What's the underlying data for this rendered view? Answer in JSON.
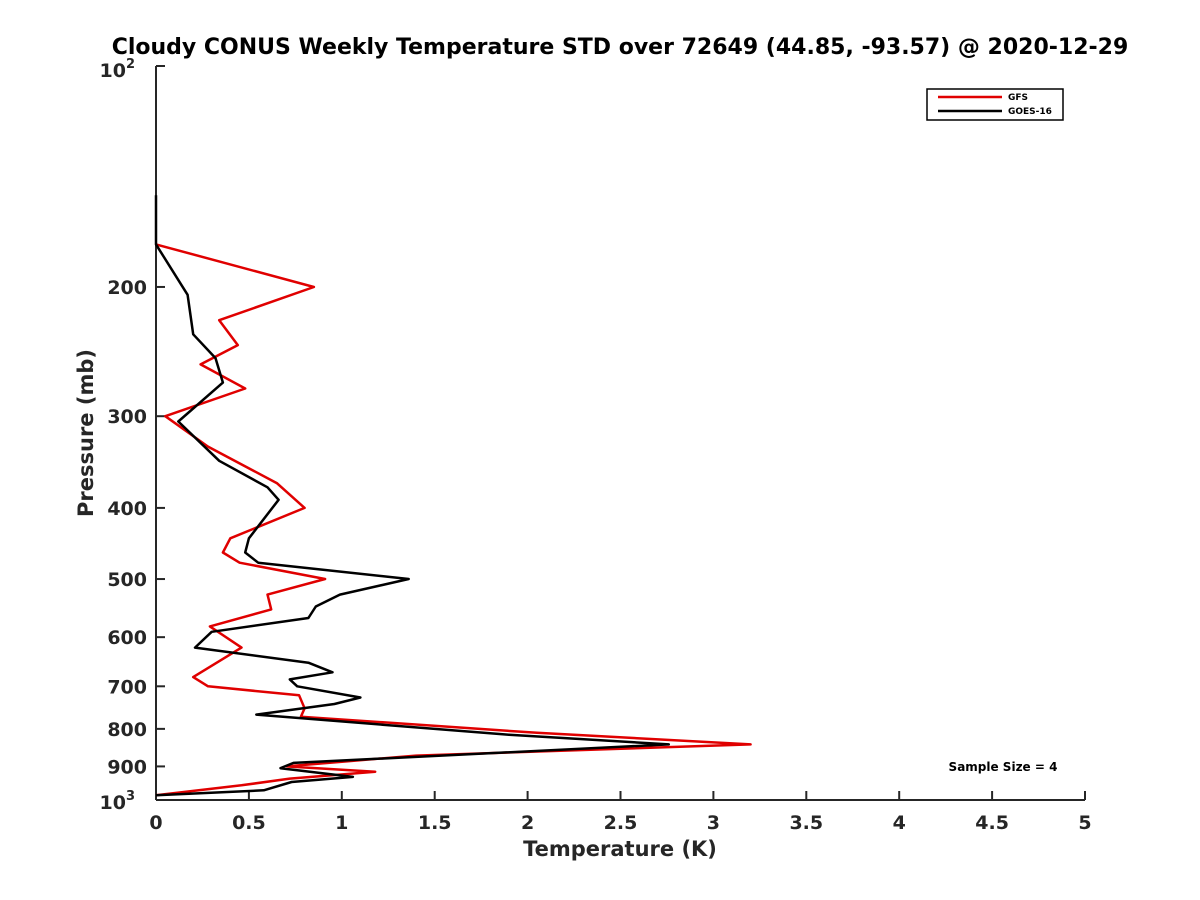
{
  "chart_data": {
    "type": "line",
    "title": "Cloudy CONUS Weekly Temperature STD over 72649 (44.85, -93.57) @ 2020-12-29",
    "xlabel": "Temperature (K)",
    "ylabel": "Pressure (mb)",
    "xlim": [
      0,
      5
    ],
    "ylim": [
      100,
      1000
    ],
    "y_scale": "log",
    "y_reversed": true,
    "x_ticks": [
      "0",
      "0.5",
      "1",
      "1.5",
      "2",
      "2.5",
      "3",
      "3.5",
      "4",
      "4.5",
      "5"
    ],
    "x_tick_values": [
      0,
      0.5,
      1,
      1.5,
      2,
      2.5,
      3,
      3.5,
      4,
      4.5,
      5
    ],
    "y_tick_values": [
      200,
      300,
      400,
      500,
      600,
      700,
      800,
      900
    ],
    "y_ticks": [
      "200",
      "300",
      "400",
      "500",
      "600",
      "700",
      "800",
      "900"
    ],
    "y_end_labels": {
      "top_base": "10",
      "top_exp": "2",
      "bottom_base": "10",
      "bottom_exp": "3"
    },
    "legend_position": "top-right",
    "annotation": "Sample Size = 4",
    "grid": false,
    "series": [
      {
        "name": "GFS",
        "color": "#e00000",
        "points": [
          [
            0.0,
            175
          ],
          [
            0.85,
            200
          ],
          [
            0.34,
            222
          ],
          [
            0.44,
            240
          ],
          [
            0.24,
            255
          ],
          [
            0.48,
            275
          ],
          [
            0.05,
            300
          ],
          [
            0.28,
            330
          ],
          [
            0.65,
            370
          ],
          [
            0.8,
            400
          ],
          [
            0.4,
            440
          ],
          [
            0.36,
            460
          ],
          [
            0.45,
            475
          ],
          [
            0.91,
            500
          ],
          [
            0.6,
            525
          ],
          [
            0.62,
            550
          ],
          [
            0.29,
            580
          ],
          [
            0.46,
            620
          ],
          [
            0.2,
            680
          ],
          [
            0.28,
            700
          ],
          [
            0.77,
            720
          ],
          [
            0.8,
            750
          ],
          [
            0.78,
            770
          ],
          [
            2.05,
            810
          ],
          [
            3.2,
            840
          ],
          [
            1.4,
            870
          ],
          [
            0.7,
            900
          ],
          [
            1.18,
            915
          ],
          [
            0.72,
            935
          ],
          [
            0.46,
            955
          ],
          [
            0.0,
            985
          ]
        ]
      },
      {
        "name": "GOES-16",
        "color": "#000000",
        "points": [
          [
            0.0,
            150
          ],
          [
            0.0,
            175
          ],
          [
            0.17,
            205
          ],
          [
            0.2,
            232
          ],
          [
            0.32,
            250
          ],
          [
            0.36,
            270
          ],
          [
            0.12,
            305
          ],
          [
            0.34,
            345
          ],
          [
            0.6,
            375
          ],
          [
            0.66,
            390
          ],
          [
            0.5,
            440
          ],
          [
            0.48,
            460
          ],
          [
            0.55,
            475
          ],
          [
            1.36,
            500
          ],
          [
            0.99,
            525
          ],
          [
            0.86,
            545
          ],
          [
            0.82,
            565
          ],
          [
            0.3,
            590
          ],
          [
            0.21,
            620
          ],
          [
            0.82,
            650
          ],
          [
            0.95,
            670
          ],
          [
            0.72,
            685
          ],
          [
            0.76,
            700
          ],
          [
            1.1,
            725
          ],
          [
            0.96,
            740
          ],
          [
            0.54,
            765
          ],
          [
            1.9,
            815
          ],
          [
            2.76,
            840
          ],
          [
            0.74,
            890
          ],
          [
            0.67,
            905
          ],
          [
            1.06,
            930
          ],
          [
            0.73,
            945
          ],
          [
            0.58,
            970
          ],
          [
            0.0,
            985
          ]
        ]
      }
    ]
  }
}
